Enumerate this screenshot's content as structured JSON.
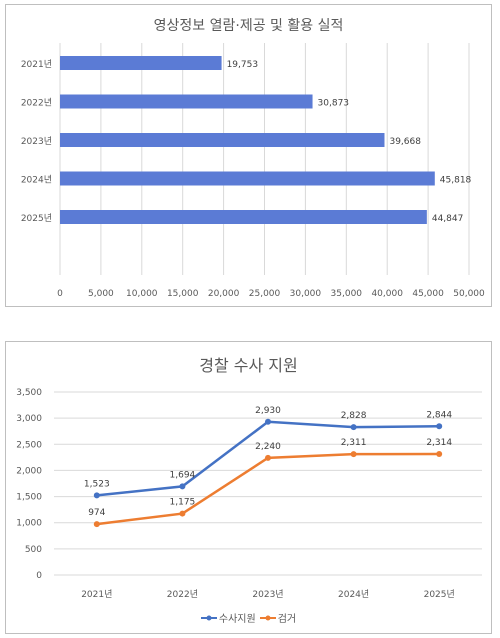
{
  "charts": {
    "bar": {
      "colors": {
        "bar": "#5b7bd5",
        "grid": "#d9d9d9",
        "text": "#595959"
      }
    },
    "line": {
      "colors": {
        "grid": "#d9d9d9",
        "text": "#595959"
      }
    }
  },
  "chart_data": [
    {
      "type": "bar",
      "orientation": "horizontal",
      "title": "영상정보 열람·제공 및 활용 실적",
      "categories": [
        "2021년",
        "2022년",
        "2023년",
        "2024년",
        "2025년"
      ],
      "values": [
        19753,
        30873,
        39668,
        45818,
        44847
      ],
      "data_labels": [
        "19,753",
        "30,873",
        "39,668",
        "45,818",
        "44,847"
      ],
      "xlim": [
        0,
        50000
      ],
      "x_ticks": [
        0,
        5000,
        10000,
        15000,
        20000,
        25000,
        30000,
        35000,
        40000,
        45000,
        50000
      ],
      "x_tick_labels": [
        "0",
        "5,000",
        "10,000",
        "15,000",
        "20,000",
        "25,000",
        "30,000",
        "35,000",
        "40,000",
        "45,000",
        "50,000"
      ],
      "grid": true,
      "legend": "none"
    },
    {
      "type": "line",
      "title": "경찰 수사 지원",
      "categories": [
        "2021년",
        "2022년",
        "2023년",
        "2024년",
        "2025년"
      ],
      "series": [
        {
          "name": "수사지원",
          "color": "#4472c4",
          "values": [
            1523,
            1694,
            2930,
            2828,
            2844
          ],
          "labels": [
            "1,523",
            "1,694",
            "2,930",
            "2,828",
            "2,844"
          ]
        },
        {
          "name": "검거",
          "color": "#ed7d31",
          "values": [
            974,
            1175,
            2240,
            2311,
            2314
          ],
          "labels": [
            "974",
            "1,175",
            "2,240",
            "2,311",
            "2,314"
          ]
        }
      ],
      "ylim": [
        0,
        3500
      ],
      "y_ticks": [
        0,
        500,
        1000,
        1500,
        2000,
        2500,
        3000,
        3500
      ],
      "y_tick_labels": [
        "0",
        "500",
        "1,000",
        "1,500",
        "2,000",
        "2,500",
        "3,000",
        "3,500"
      ],
      "grid": true,
      "legend": "bottom"
    }
  ]
}
